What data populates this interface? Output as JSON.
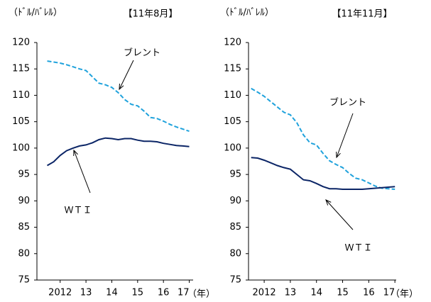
{
  "chart_data": [
    {
      "type": "line",
      "unit_label": "（ﾄﾞﾙ/ﾊﾞﾚﾙ）",
      "title": "【11年8月】",
      "x_label": "（年）",
      "x": [
        2011.5,
        2011.75,
        2012,
        2012.25,
        2012.5,
        2012.75,
        2013,
        2013.25,
        2013.5,
        2013.75,
        2014,
        2014.25,
        2014.5,
        2014.75,
        2015,
        2015.25,
        2015.5,
        2015.75,
        2016,
        2016.25,
        2016.5,
        2016.75,
        2017
      ],
      "xlim": [
        2011.1,
        2017.15
      ],
      "xticks": [
        {
          "value": 2012,
          "label": "2012"
        },
        {
          "value": 2013,
          "label": "13"
        },
        {
          "value": 2014,
          "label": "14"
        },
        {
          "value": 2015,
          "label": "15"
        },
        {
          "value": 2016,
          "label": "16"
        },
        {
          "value": 2017,
          "label": "17"
        }
      ],
      "ylim": [
        75,
        120
      ],
      "yticks": [
        75,
        80,
        85,
        90,
        95,
        100,
        105,
        110,
        115,
        120
      ],
      "series": [
        {
          "name": "ブレント",
          "color": "#1fa2dc",
          "dashed": true,
          "values": [
            116.5,
            116.3,
            116.1,
            115.8,
            115.4,
            115.0,
            114.7,
            113.5,
            112.3,
            112.0,
            111.5,
            110.5,
            109.2,
            108.3,
            108.0,
            107.0,
            105.8,
            105.6,
            105.1,
            104.5,
            104.0,
            103.6,
            103.2
          ]
        },
        {
          "name": "ＷＴＩ",
          "color": "#0b2566",
          "dashed": false,
          "values": [
            96.7,
            97.4,
            98.6,
            99.5,
            100.0,
            100.4,
            100.6,
            101.0,
            101.6,
            101.9,
            101.8,
            101.6,
            101.8,
            101.8,
            101.5,
            101.3,
            101.3,
            101.2,
            100.9,
            100.7,
            100.5,
            100.4,
            100.3
          ]
        }
      ]
    },
    {
      "type": "line",
      "unit_label": "（ﾄﾞﾙ/ﾊﾞﾚﾙ）",
      "title": "【11年11月】",
      "x_label": "（年）",
      "x": [
        2011.5,
        2011.75,
        2012,
        2012.25,
        2012.5,
        2012.75,
        2013,
        2013.25,
        2013.5,
        2013.75,
        2014,
        2014.25,
        2014.5,
        2014.75,
        2015,
        2015.25,
        2015.5,
        2015.75,
        2016,
        2016.25,
        2016.5,
        2016.75,
        2017
      ],
      "xlim": [
        2011.4,
        2017.05
      ],
      "xticks": [
        {
          "value": 2012,
          "label": "2012"
        },
        {
          "value": 2013,
          "label": "13"
        },
        {
          "value": 2014,
          "label": "14"
        },
        {
          "value": 2015,
          "label": "15"
        },
        {
          "value": 2016,
          "label": "16"
        },
        {
          "value": 2017,
          "label": "17"
        }
      ],
      "ylim": [
        75,
        120
      ],
      "yticks": [
        75,
        80,
        85,
        90,
        95,
        100,
        105,
        110,
        115,
        120
      ],
      "series": [
        {
          "name": "ブレント",
          "color": "#1fa2dc",
          "dashed": true,
          "values": [
            111.3,
            110.6,
            109.8,
            108.8,
            107.8,
            106.8,
            106.3,
            104.8,
            102.5,
            101.0,
            100.6,
            99.0,
            97.6,
            96.9,
            96.3,
            95.2,
            94.3,
            94.0,
            93.4,
            92.8,
            92.4,
            92.3,
            92.2
          ]
        },
        {
          "name": "ＷＴＩ",
          "color": "#0b2566",
          "dashed": false,
          "values": [
            98.2,
            98.1,
            97.7,
            97.2,
            96.7,
            96.3,
            96.0,
            95.0,
            94.0,
            93.8,
            93.3,
            92.7,
            92.3,
            92.3,
            92.2,
            92.2,
            92.2,
            92.2,
            92.3,
            92.4,
            92.5,
            92.6,
            92.7
          ]
        }
      ]
    }
  ]
}
